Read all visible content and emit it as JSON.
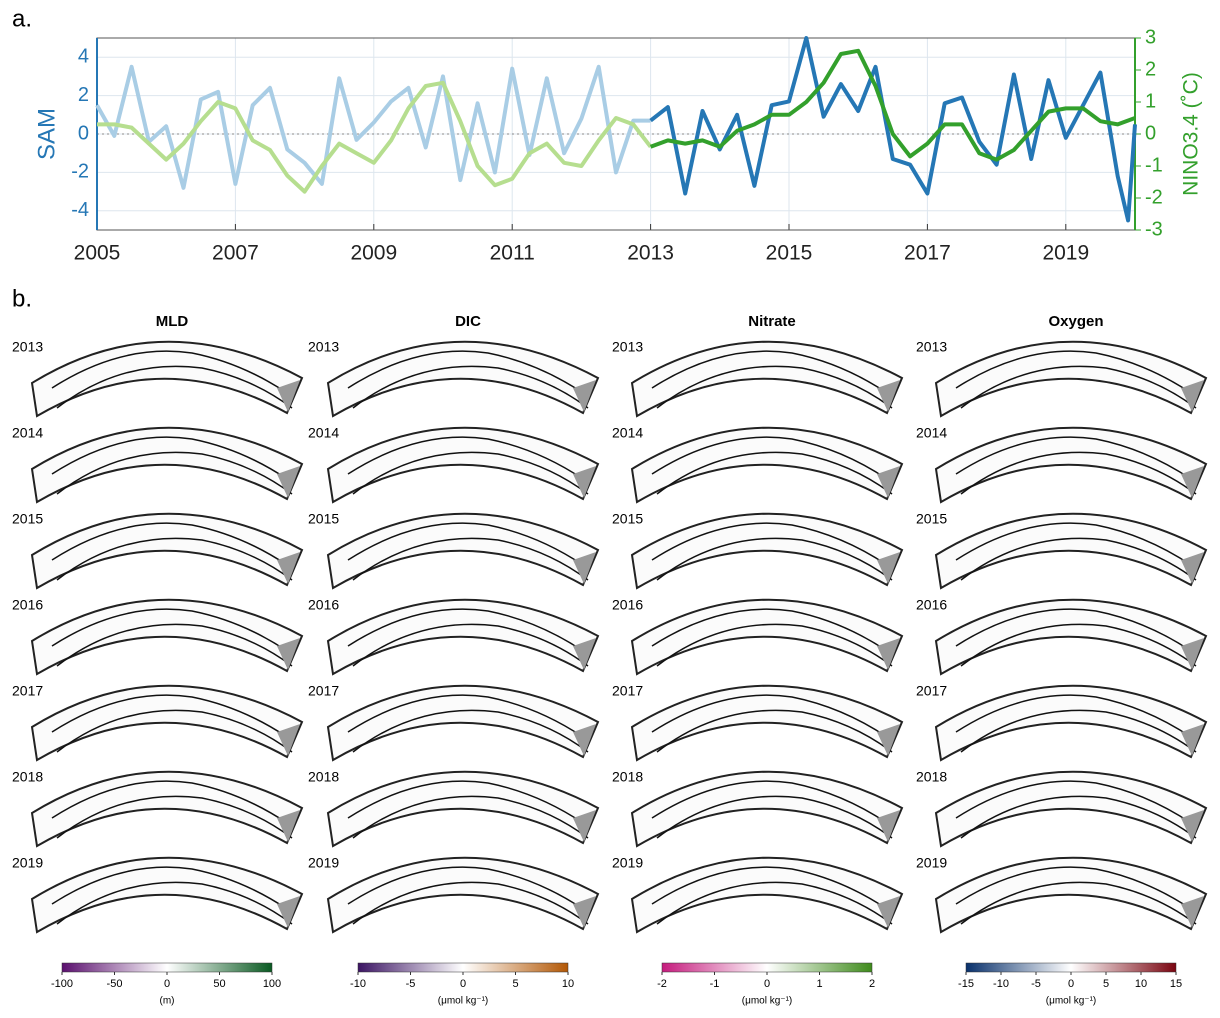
{
  "chart_data": [
    {
      "type": "line",
      "label": "a.",
      "ylabel": "SAM",
      "y2label": "NINO3.4 (˚C)",
      "xlim": [
        2005,
        2020
      ],
      "xticks": [
        2005,
        2007,
        2009,
        2011,
        2013,
        2015,
        2017,
        2019
      ],
      "ylim": [
        -5,
        5
      ],
      "yticks": [
        -4,
        -2,
        0,
        2,
        4
      ],
      "y2lim": [
        -3,
        3
      ],
      "y2ticks": [
        -3,
        -2,
        -1,
        0,
        1,
        2,
        3
      ],
      "grid": true,
      "series": [
        {
          "color": "#a9cde5",
          "axis": "y",
          "x": [
            2005,
            2005.25,
            2005.5,
            2005.75,
            2006,
            2006.25,
            2006.5,
            2006.75,
            2007,
            2007.25,
            2007.5,
            2007.75,
            2008,
            2008.25,
            2008.5,
            2008.75,
            2009,
            2009.25,
            2009.5,
            2009.75,
            2010,
            2010.25,
            2010.5,
            2010.75,
            2011,
            2011.25,
            2011.5,
            2011.75,
            2012,
            2012.25,
            2012.5,
            2012.75,
            2013
          ],
          "values": [
            1.5,
            -0.1,
            3.5,
            -0.4,
            0.4,
            -2.8,
            1.8,
            2.2,
            -2.6,
            1.5,
            2.4,
            -0.8,
            -1.5,
            -2.6,
            2.9,
            -0.3,
            0.6,
            1.7,
            2.4,
            -0.7,
            3.0,
            -2.4,
            1.6,
            -2.0,
            3.4,
            -1.1,
            2.9,
            -1.0,
            0.8,
            3.5,
            -2.0,
            0.7,
            0.7
          ]
        },
        {
          "color": "#2577b5",
          "axis": "y",
          "x": [
            2013,
            2013.25,
            2013.5,
            2013.75,
            2014,
            2014.25,
            2014.5,
            2014.75,
            2015,
            2015.25,
            2015.5,
            2015.75,
            2016,
            2016.25,
            2016.5,
            2016.75,
            2017,
            2017.25,
            2017.5,
            2017.75,
            2018,
            2018.25,
            2018.5,
            2018.75,
            2019,
            2019.25,
            2019.5,
            2019.75,
            2019.9,
            2020
          ],
          "values": [
            0.7,
            1.4,
            -3.1,
            1.2,
            -0.8,
            1.0,
            -2.7,
            1.5,
            1.7,
            5.0,
            0.9,
            2.6,
            1.2,
            3.5,
            -1.3,
            -1.6,
            -3.1,
            1.6,
            1.9,
            -0.4,
            -1.6,
            3.1,
            -1.3,
            2.8,
            -0.2,
            1.5,
            3.2,
            -2.2,
            -4.5,
            0.5
          ]
        },
        {
          "color": "#b6de8f",
          "axis": "y2",
          "x": [
            2005,
            2005.25,
            2005.5,
            2005.75,
            2006,
            2006.25,
            2006.5,
            2006.75,
            2007,
            2007.25,
            2007.5,
            2007.75,
            2008,
            2008.25,
            2008.5,
            2008.75,
            2009,
            2009.25,
            2009.5,
            2009.75,
            2010,
            2010.25,
            2010.5,
            2010.75,
            2011,
            2011.25,
            2011.5,
            2011.75,
            2012,
            2012.25,
            2012.5,
            2012.75,
            2013
          ],
          "values": [
            0.3,
            0.3,
            0.2,
            -0.3,
            -0.8,
            -0.3,
            0.4,
            1.0,
            0.8,
            -0.2,
            -0.5,
            -1.3,
            -1.8,
            -1.0,
            -0.3,
            -0.6,
            -0.9,
            -0.2,
            0.8,
            1.5,
            1.6,
            0.4,
            -1.0,
            -1.6,
            -1.4,
            -0.6,
            -0.3,
            -0.9,
            -1.0,
            -0.2,
            0.5,
            0.3,
            -0.4
          ]
        },
        {
          "color": "#33a02c",
          "axis": "y2",
          "x": [
            2013,
            2013.25,
            2013.5,
            2013.75,
            2014,
            2014.25,
            2014.5,
            2014.75,
            2015,
            2015.25,
            2015.5,
            2015.75,
            2016,
            2016.25,
            2016.5,
            2016.75,
            2017,
            2017.25,
            2017.5,
            2017.75,
            2018,
            2018.25,
            2018.5,
            2018.75,
            2019,
            2019.25,
            2019.5,
            2019.75,
            2020
          ],
          "values": [
            -0.4,
            -0.2,
            -0.3,
            -0.2,
            -0.4,
            0.1,
            0.3,
            0.6,
            0.6,
            1.0,
            1.6,
            2.5,
            2.6,
            1.5,
            0.0,
            -0.7,
            -0.3,
            0.3,
            0.3,
            -0.6,
            -0.8,
            -0.5,
            0.1,
            0.7,
            0.8,
            0.8,
            0.4,
            0.3,
            0.5
          ]
        }
      ]
    },
    {
      "type": "maps",
      "label": "b.",
      "rows": [
        "2013",
        "2014",
        "2015",
        "2016",
        "2017",
        "2018",
        "2019"
      ],
      "columns": [
        {
          "title": "MLD",
          "clim": [
            -100,
            100
          ],
          "ticks": [
            -100,
            -50,
            0,
            50,
            100
          ],
          "unit": "(m)",
          "colors": [
            "#5a0f6e",
            "#ffffff",
            "#0a5a22"
          ]
        },
        {
          "title": "DIC",
          "clim": [
            -10,
            10
          ],
          "ticks": [
            -10,
            -5,
            0,
            5,
            10
          ],
          "unit": "(μmol kg⁻¹)",
          "colors": [
            "#3b1463",
            "#ffffff",
            "#b35806"
          ]
        },
        {
          "title": "Nitrate",
          "clim": [
            -2,
            2
          ],
          "ticks": [
            -2,
            -1,
            0,
            1,
            2
          ],
          "unit": "(μmol kg⁻¹)",
          "colors": [
            "#c51b7d",
            "#ffffff",
            "#3f8b1c"
          ]
        },
        {
          "title": "Oxygen",
          "clim": [
            -15,
            15
          ],
          "ticks": [
            -15,
            -10,
            -5,
            0,
            5,
            10,
            15
          ],
          "unit": "(μmol kg⁻¹)",
          "colors": [
            "#08306b",
            "#ffffff",
            "#7a0510"
          ]
        }
      ]
    }
  ]
}
